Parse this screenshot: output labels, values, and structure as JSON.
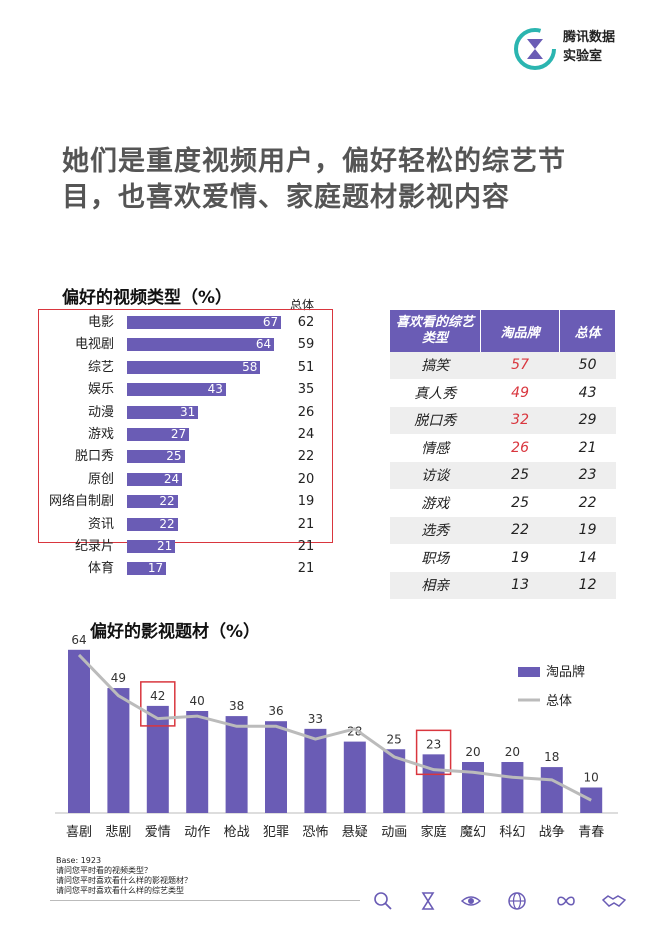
{
  "brand": {
    "name_line1": "腾讯数据",
    "name_line2": "实验室"
  },
  "headline": {
    "line1": "她们是重度视频用户，偏好轻松的综艺节",
    "line2": "目，也喜欢爱情、家庭题材影视内容"
  },
  "colors": {
    "accent": "#6a5cb5",
    "highlight": "#d9363e",
    "total_line": "#bbbbbb"
  },
  "video_types": {
    "title": "偏好的视频类型（%）",
    "total_header": "总体",
    "chart_data": {
      "type": "bar",
      "orientation": "horizontal",
      "categories": [
        "电影",
        "电视剧",
        "综艺",
        "娱乐",
        "动漫",
        "游戏",
        "脱口秀",
        "原创",
        "网络自制剧",
        "资讯",
        "纪录片",
        "体育"
      ],
      "series": [
        {
          "name": "淘品牌",
          "values": [
            67,
            64,
            58,
            43,
            31,
            27,
            25,
            24,
            22,
            22,
            21,
            17
          ]
        }
      ],
      "totals": [
        62,
        59,
        51,
        35,
        26,
        24,
        22,
        20,
        19,
        21,
        21,
        21
      ]
    }
  },
  "variety_table": {
    "headers": [
      "喜欢看的综艺类型",
      "淘品牌",
      "总体"
    ],
    "rows": [
      {
        "type": "搞笑",
        "brand": "57",
        "total": "50",
        "highlight": true
      },
      {
        "type": "真人秀",
        "brand": "49",
        "total": "43",
        "highlight": true
      },
      {
        "type": "脱口秀",
        "brand": "32",
        "total": "29",
        "highlight": true
      },
      {
        "type": "情感",
        "brand": "26",
        "total": "21",
        "highlight": true
      },
      {
        "type": "访谈",
        "brand": "25",
        "total": "23",
        "highlight": false
      },
      {
        "type": "游戏",
        "brand": "25",
        "total": "22",
        "highlight": false
      },
      {
        "type": "选秀",
        "brand": "22",
        "total": "19",
        "highlight": false
      },
      {
        "type": "职场",
        "brand": "19",
        "total": "14",
        "highlight": false
      },
      {
        "type": "相亲",
        "brand": "13",
        "total": "12",
        "highlight": false
      }
    ]
  },
  "genres": {
    "title": "偏好的影视题材（%）",
    "chart_data": {
      "type": "bar",
      "categories": [
        "喜剧",
        "悲剧",
        "爱情",
        "动作",
        "枪战",
        "犯罪",
        "恐怖",
        "悬疑",
        "动画",
        "家庭",
        "魔幻",
        "科幻",
        "战争",
        "青春"
      ],
      "series": [
        {
          "name": "淘品牌",
          "type": "bar",
          "values": [
            64,
            49,
            42,
            40,
            38,
            36,
            33,
            28,
            25,
            23,
            20,
            20,
            18,
            10
          ]
        },
        {
          "name": "总体",
          "type": "line",
          "values": [
            62,
            46,
            37,
            38,
            34,
            34,
            29,
            33,
            22,
            17,
            16,
            14,
            13,
            5
          ]
        }
      ],
      "highlighted": [
        "爱情",
        "家庭"
      ],
      "legend": "right"
    }
  },
  "footer": {
    "base": "Base: 1923",
    "q1": "请问您平时看的视频类型？",
    "q2": "请问您平时喜欢看什么样的影视题材？",
    "q3": "请问您平时喜欢看什么样的综艺类型"
  },
  "footer_icons": [
    "search-icon",
    "hourglass-icon",
    "eye-icon",
    "globe-icon",
    "infinity-icon",
    "handshake-icon"
  ]
}
